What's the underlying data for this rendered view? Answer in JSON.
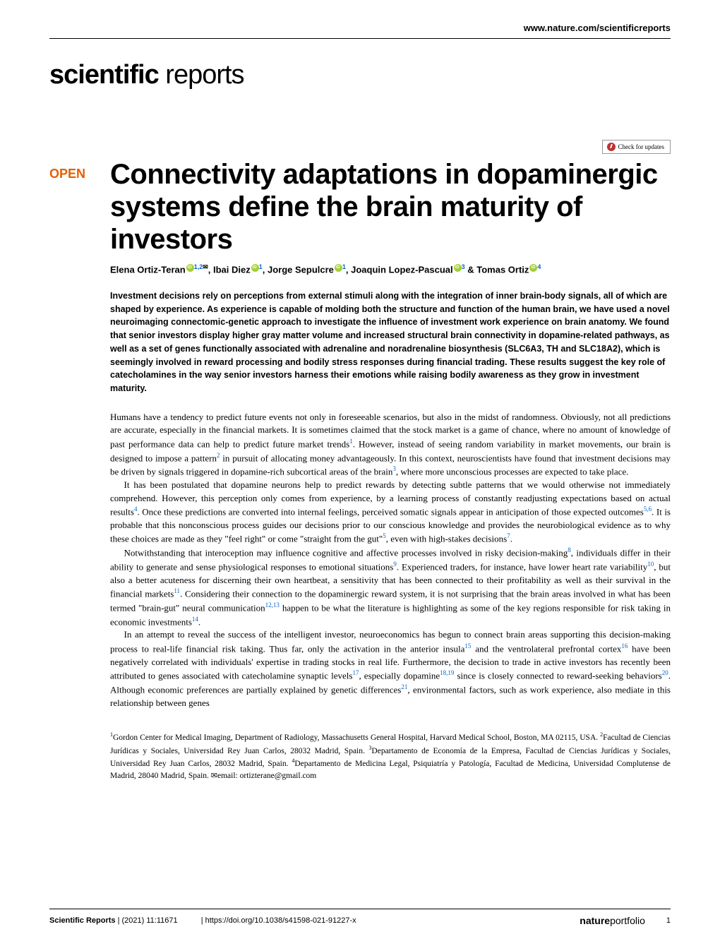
{
  "header": {
    "url": "www.nature.com/scientificreports",
    "logo_bold": "scientific",
    "logo_light": " reports",
    "check_updates": "Check for updates"
  },
  "article": {
    "open_label": "OPEN",
    "title": "Connectivity adaptations in dopaminergic systems define the brain maturity of investors",
    "authors_html": "Elena Ortiz-Teran",
    "author1_aff": "1,2",
    "author2": ", Ibai Diez",
    "author2_aff": "1",
    "author3": ", Jorge Sepulcre",
    "author3_aff": "1",
    "author4": ", Joaquin Lopez-Pascual",
    "author4_aff": "3",
    "author_amp": " & ",
    "author5": "Tomas Ortiz",
    "author5_aff": "4",
    "abstract": "Investment decisions rely on perceptions from external stimuli along with the integration of inner brain-body signals, all of which are shaped by experience. As experience is capable of molding both the structure and function of the human brain, we have used a novel neuroimaging connectomic-genetic approach to investigate the influence of investment work experience on brain anatomy. We found that senior investors display higher gray matter volume and increased structural brain connectivity in dopamine-related pathways, as well as a set of genes functionally associated with adrenaline and noradrenaline biosynthesis (SLC6A3, TH and SLC18A2), which is seemingly involved in reward processing and bodily stress responses during financial trading. These results suggest the key role of catecholamines in the way senior investors harness their emotions while raising bodily awareness as they grow in investment maturity.",
    "para1a": "Humans have a tendency to predict future events not only in foreseeable scenarios, but also in the midst of randomness. Obviously, not all predictions are accurate, especially in the financial markets. It is sometimes claimed that the stock market is a game of chance, where no amount of knowledge of past performance data can help to predict future market trends",
    "para1b": ". However, instead of seeing random variability in market movements, our brain is designed to impose a pattern",
    "para1c": " in pursuit of allocating money advantageously. In this context, neuroscientists have found that investment decisions may be driven by signals triggered in dopamine-rich subcortical areas of the brain",
    "para1d": ", where more unconscious processes are expected to take place.",
    "para2a": "It has been postulated that dopamine neurons help to predict rewards by detecting subtle patterns that we would otherwise not immediately comprehend. However, this perception only comes from experience, by a learning process of constantly readjusting expectations based on actual results",
    "para2b": ". Once these predictions are converted into internal feelings, perceived somatic signals appear in anticipation of those expected outcomes",
    "para2c": ". It is probable that this nonconscious process guides our decisions prior to our conscious knowledge and provides the neurobiological evidence as to why these choices are made as they \"feel right\" or come \"straight from the gut\"",
    "para2d": ", even with high-stakes decisions",
    "para2e": ".",
    "para3a": "Notwithstanding that interoception may influence cognitive and affective processes involved in risky decision-making",
    "para3b": ", individuals differ in their ability to generate and sense physiological responses to emotional situations",
    "para3c": ". Experienced traders, for instance, have lower heart rate variability",
    "para3d": ", but also a better acuteness for discerning their own heartbeat, a sensitivity that has been connected to their profitability as well as their survival in the financial markets",
    "para3e": ". Considering their connection to the dopaminergic reward system, it is not surprising that the brain areas involved in what has been termed \"brain-gut\" neural communication",
    "para3f": " happen to be what the literature is highlighting as some of the key regions responsible for risk taking in economic investments",
    "para3g": ".",
    "para4a": "In an attempt to reveal the success of the intelligent investor, neuroeconomics has begun to connect brain areas supporting this decision-making process to real-life financial risk taking. Thus far, only the activation in the anterior insula",
    "para4b": " and the ventrolateral prefrontal cortex",
    "para4c": " have been negatively correlated with individuals' expertise in trading stocks in real life. Furthermore, the decision to trade in active investors has recently been attributed to genes associated with catecholamine synaptic levels",
    "para4d": ", especially dopamine",
    "para4e": " since is closely connected to reward-seeking behaviors",
    "para4f": ". Although economic preferences are partially explained by genetic differences",
    "para4g": ", environmental factors, such as work experience, also mediate in this relationship between genes",
    "affiliations_1": "Gordon Center for Medical Imaging, Department of Radiology, Massachusetts General Hospital, Harvard Medical School, Boston, MA 02115, USA. ",
    "affiliations_2": "Facultad de Ciencias Jurídicas y Sociales, Universidad Rey Juan Carlos, 28032 Madrid, Spain. ",
    "affiliations_3": "Departamento de Economía de la Empresa, Facultad de Ciencias Jurídicas y Sociales, Universidad Rey Juan Carlos, 28032 Madrid, Spain. ",
    "affiliations_4": "Departamento de Medicina Legal, Psiquiatría y Patología, Facultad de Medicina, Universidad Complutense de Madrid, 28040 Madrid, Spain. ",
    "corr_email_label": "email: ",
    "corr_email": "ortizterane@gmail.com"
  },
  "refs": {
    "r1": "1",
    "r2": "2",
    "r3": "3",
    "r4": "4",
    "r56": "5,6",
    "r5": "5",
    "r7": "7",
    "r8": "8",
    "r9": "9",
    "r10": "10",
    "r11": "11",
    "r1213": "12,13",
    "r14": "14",
    "r15": "15",
    "r16": "16",
    "r17": "17",
    "r1819": "18,19",
    "r20": "20",
    "r21": "21"
  },
  "footer": {
    "journal": "Scientific Reports",
    "citation": "(2021) 11:11671",
    "doi": "https://doi.org/10.1038/s41598-021-91227-x",
    "np_bold": "nature",
    "np_light": "portfolio",
    "page": "1"
  },
  "colors": {
    "open_orange": "#e85d00",
    "link_blue": "#0066cc",
    "orcid_green": "#a6ce39",
    "check_icon": "#b33333"
  }
}
